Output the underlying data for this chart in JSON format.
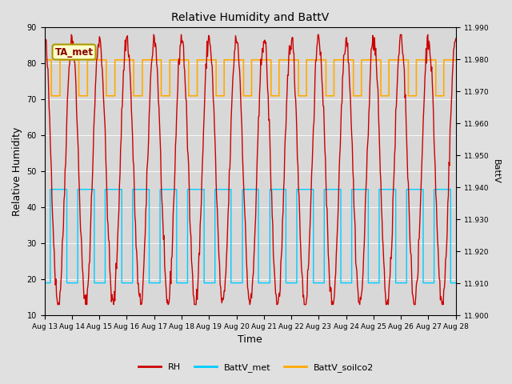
{
  "title": "Relative Humidity and BattV",
  "xlabel": "Time",
  "ylabel_left": "Relative Humidity",
  "ylabel_right": "BattV",
  "ylim_left": [
    10,
    90
  ],
  "ylim_right": [
    11.9,
    11.99
  ],
  "annotation_text": "TA_met",
  "legend_labels": [
    "RH",
    "BattV_met",
    "BattV_soilco2"
  ],
  "rh_color": "#cc0000",
  "battv_met_color": "#00ccff",
  "battv_soilco2_color": "#ffaa00",
  "background_color": "#e0e0e0",
  "plot_bg_color": "#d8d8d8",
  "x_tick_labels": [
    "Aug 13",
    "Aug 14",
    "Aug 15",
    "Aug 16",
    "Aug 17",
    "Aug 18",
    "Aug 19",
    "Aug 20",
    "Aug 21",
    "Aug 22",
    "Aug 23",
    "Aug 24",
    "Aug 25",
    "Aug 26",
    "Aug 27",
    "Aug 28"
  ],
  "rh_yticks": [
    10,
    20,
    30,
    40,
    50,
    60,
    70,
    80,
    90
  ],
  "battv_yticks": [
    11.9,
    11.91,
    11.92,
    11.93,
    11.94,
    11.95,
    11.96,
    11.97,
    11.98,
    11.99
  ],
  "n_days": 15,
  "battv_met_high": 45,
  "battv_met_low": 19,
  "battv_soilco2_high": 81,
  "battv_soilco2_low": 71
}
